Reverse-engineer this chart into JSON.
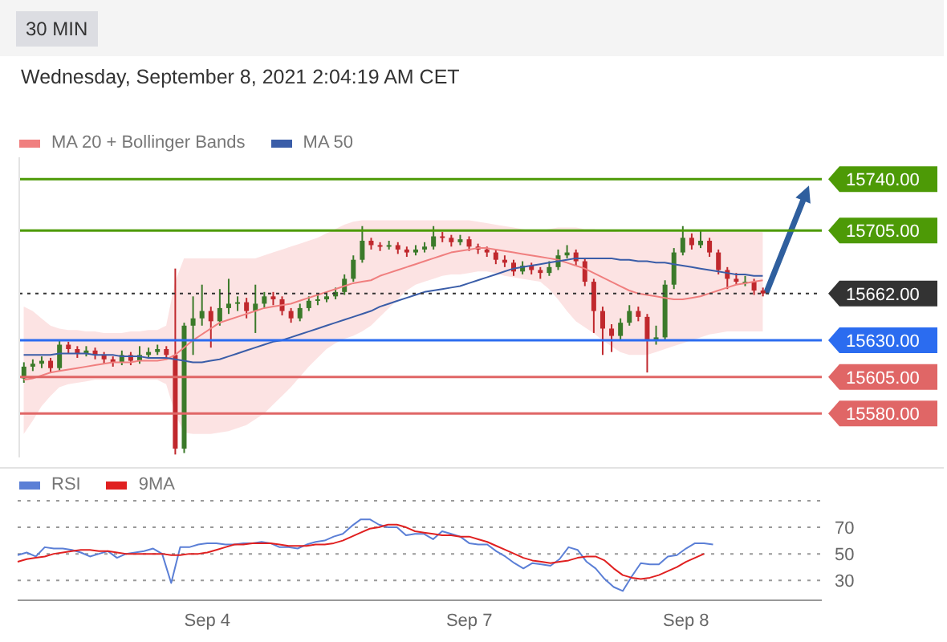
{
  "chart_data": [
    {
      "type": "candlestick",
      "subtitle": "Wednesday, September 8, 2021 2:04:19 AM CET",
      "annotations": [
        "30 MIN"
      ],
      "legend": "top left",
      "tick_labels": false,
      "categories": [
        null,
        null,
        null,
        null,
        null,
        null,
        null,
        null,
        null,
        null,
        null,
        null,
        null,
        null,
        null,
        null,
        null,
        null,
        null,
        null,
        null,
        null,
        null,
        null,
        null,
        null,
        null,
        null,
        null,
        null,
        null,
        null,
        null,
        null,
        null,
        null,
        null,
        null,
        null,
        null,
        null,
        null,
        null,
        null,
        null,
        null,
        null,
        null,
        null,
        null,
        null,
        null,
        null,
        null,
        null,
        null,
        null,
        null,
        null,
        null,
        null,
        null,
        null,
        null,
        null,
        null,
        null,
        null,
        null,
        null,
        null,
        null,
        null,
        null,
        null,
        null,
        null,
        null,
        null,
        null,
        null,
        null,
        null,
        null
      ],
      "ylim": [
        15550,
        15755
      ],
      "ohlc": [
        [
          15604,
          15615,
          15601,
          15612
        ],
        [
          15612,
          15617,
          15609,
          15614
        ],
        [
          15614,
          15619,
          15611,
          15616
        ],
        [
          15616,
          15618,
          15608,
          15611
        ],
        [
          15611,
          15630,
          15609,
          15627
        ],
        [
          15627,
          15629,
          15621,
          15624
        ],
        [
          15624,
          15626,
          15618,
          15621
        ],
        [
          15621,
          15626,
          15619,
          15623
        ],
        [
          15623,
          15625,
          15617,
          15620
        ],
        [
          15620,
          15622,
          15614,
          15617
        ],
        [
          15617,
          15619,
          15612,
          15615
        ],
        [
          15615,
          15623,
          15613,
          15620
        ],
        [
          15620,
          15622,
          15613,
          15616
        ],
        [
          15616,
          15626,
          15614,
          15620
        ],
        [
          15620,
          15625,
          15618,
          15622
        ],
        [
          15622,
          15627,
          15620,
          15624
        ],
        [
          15624,
          15626,
          15617,
          15620
        ],
        [
          15620,
          15679,
          15552,
          15556
        ],
        [
          15556,
          15642,
          15553,
          15640
        ],
        [
          15640,
          15660,
          15620,
          15645
        ],
        [
          15645,
          15668,
          15640,
          15650
        ],
        [
          15650,
          15653,
          15625,
          15643
        ],
        [
          15643,
          15665,
          15640,
          15652
        ],
        [
          15652,
          15672,
          15648,
          15655
        ],
        [
          15655,
          15660,
          15650,
          15656
        ],
        [
          15656,
          15659,
          15645,
          15650
        ],
        [
          15650,
          15668,
          15635,
          15655
        ],
        [
          15655,
          15663,
          15652,
          15660
        ],
        [
          15660,
          15663,
          15654,
          15658
        ],
        [
          15658,
          15660,
          15647,
          15650
        ],
        [
          15650,
          15652,
          15642,
          15645
        ],
        [
          15645,
          15655,
          15643,
          15652
        ],
        [
          15652,
          15660,
          15650,
          15657
        ],
        [
          15657,
          15661,
          15654,
          15658
        ],
        [
          15658,
          15663,
          15656,
          15660
        ],
        [
          15660,
          15666,
          15658,
          15663
        ],
        [
          15663,
          15675,
          15661,
          15672
        ],
        [
          15672,
          15688,
          15670,
          15685
        ],
        [
          15685,
          15708,
          15683,
          15698
        ],
        [
          15698,
          15700,
          15692,
          15695
        ],
        [
          15695,
          15697,
          15691,
          15694
        ],
        [
          15694,
          15698,
          15692,
          15695
        ],
        [
          15695,
          15697,
          15689,
          15692
        ],
        [
          15692,
          15694,
          15687,
          15690
        ],
        [
          15690,
          15695,
          15688,
          15692
        ],
        [
          15692,
          15697,
          15690,
          15694
        ],
        [
          15694,
          15708,
          15692,
          15701
        ],
        [
          15701,
          15704,
          15697,
          15700
        ],
        [
          15700,
          15702,
          15694,
          15697
        ],
        [
          15697,
          15702,
          15695,
          15699
        ],
        [
          15699,
          15701,
          15691,
          15694
        ],
        [
          15694,
          15696,
          15689,
          15692
        ],
        [
          15692,
          15694,
          15687,
          15690
        ],
        [
          15690,
          15692,
          15682,
          15685
        ],
        [
          15685,
          15688,
          15680,
          15683
        ],
        [
          15683,
          15685,
          15674,
          15677
        ],
        [
          15677,
          15684,
          15675,
          15681
        ],
        [
          15681,
          15683,
          15675,
          15678
        ],
        [
          15678,
          15680,
          15672,
          15676
        ],
        [
          15676,
          15684,
          15674,
          15680
        ],
        [
          15680,
          15692,
          15678,
          15688
        ],
        [
          15688,
          15695,
          15686,
          15690
        ],
        [
          15690,
          15692,
          15681,
          15684
        ],
        [
          15684,
          15686,
          15667,
          15670
        ],
        [
          15670,
          15672,
          15635,
          15650
        ],
        [
          15650,
          15653,
          15620,
          15638
        ],
        [
          15638,
          15641,
          15622,
          15633
        ],
        [
          15633,
          15645,
          15630,
          15642
        ],
        [
          15642,
          15654,
          15640,
          15650
        ],
        [
          15650,
          15653,
          15643,
          15646
        ],
        [
          15646,
          15648,
          15608,
          15630
        ],
        [
          15630,
          15640,
          15627,
          15632
        ],
        [
          15632,
          15671,
          15630,
          15668
        ],
        [
          15668,
          15693,
          15665,
          15690
        ],
        [
          15690,
          15708,
          15688,
          15700
        ],
        [
          15700,
          15703,
          15692,
          15695
        ],
        [
          15695,
          15705,
          15693,
          15698
        ],
        [
          15698,
          15700,
          15687,
          15690
        ],
        [
          15690,
          15692,
          15675,
          15678
        ],
        [
          15678,
          15680,
          15665,
          15672
        ],
        [
          15672,
          15676,
          15668,
          15670
        ],
        [
          15670,
          15674,
          15667,
          15670
        ],
        [
          15670,
          15672,
          15661,
          15664
        ],
        [
          15664,
          15666,
          15660,
          15662
        ]
      ],
      "series": [
        {
          "name": "MA 20 + Bollinger Bands",
          "type": "line",
          "color": "#f07f7f",
          "values": [
            15603,
            15604,
            15606,
            15608,
            15609,
            15610,
            15611,
            15612,
            15613,
            15614,
            15615,
            15615,
            15615,
            15616,
            15616,
            15616,
            15617,
            15620,
            15625,
            15630,
            15634,
            15638,
            15642,
            15644,
            15646,
            15648,
            15650,
            15652,
            15653,
            15654,
            15655,
            15657,
            15659,
            15661,
            15663,
            15665,
            15667,
            15669,
            15670,
            15671,
            15674,
            15676,
            15678,
            15680,
            15682,
            15684,
            15686,
            15688,
            15690,
            15691,
            15692,
            15693,
            15693,
            15692,
            15691,
            15690,
            15689,
            15688,
            15687,
            15686,
            15685,
            15683,
            15681,
            15679,
            15676,
            15673,
            15670,
            15667,
            15664,
            15662,
            15661,
            15660,
            15659,
            15658,
            15658,
            15659,
            15660,
            15662,
            15664,
            15666,
            15668,
            15669,
            15670,
            15671
          ],
          "upper": [
            15653,
            15650,
            15645,
            15640,
            15638,
            15637,
            15637,
            15636,
            15636,
            15635,
            15635,
            15635,
            15636,
            15636,
            15637,
            15637,
            15640,
            15670,
            15686,
            15686,
            15686,
            15686,
            15686,
            15686,
            15686,
            15686,
            15686,
            15688,
            15690,
            15692,
            15694,
            15696,
            15698,
            15700,
            15703,
            15706,
            15709,
            15711,
            15712,
            15712,
            15712,
            15712,
            15712,
            15712,
            15712,
            15712,
            15712,
            15712,
            15712,
            15712,
            15712,
            15711,
            15710,
            15709,
            15708,
            15707,
            15706,
            15705,
            15705,
            15706,
            15707,
            15707,
            15707,
            15706,
            15706,
            15705,
            15705,
            15704,
            15704,
            15704,
            15704,
            15704,
            15704,
            15704,
            15704,
            15704,
            15704,
            15704,
            15704,
            15704,
            15704,
            15704,
            15704,
            15704
          ],
          "lower": [
            15566,
            15575,
            15585,
            15592,
            15598,
            15600,
            15601,
            15602,
            15603,
            15603,
            15603,
            15603,
            15603,
            15603,
            15603,
            15603,
            15600,
            15580,
            15567,
            15566,
            15566,
            15566,
            15567,
            15568,
            15570,
            15572,
            15576,
            15580,
            15586,
            15592,
            15598,
            15605,
            15612,
            15618,
            15624,
            15628,
            15631,
            15633,
            15636,
            15640,
            15646,
            15652,
            15658,
            15664,
            15668,
            15670,
            15672,
            15674,
            15675,
            15675,
            15676,
            15677,
            15677,
            15676,
            15674,
            15673,
            15672,
            15671,
            15670,
            15665,
            15658,
            15650,
            15643,
            15639,
            15635,
            15630,
            15626,
            15622,
            15620,
            15620,
            15620,
            15622,
            15624,
            15626,
            15628,
            15630,
            15632,
            15634,
            15635,
            15636,
            15636,
            15636,
            15636,
            15636
          ]
        },
        {
          "name": "MA 50",
          "type": "line",
          "color": "#3a5da8",
          "values": [
            15620,
            15620,
            15620,
            15620,
            15621,
            15621,
            15621,
            15621,
            15620,
            15620,
            15620,
            15619,
            15619,
            15619,
            15618,
            15618,
            15618,
            15617,
            15616,
            15615,
            15615,
            15616,
            15617,
            15619,
            15621,
            15623,
            15625,
            15627,
            15629,
            15630,
            15632,
            15634,
            15636,
            15638,
            15640,
            15642,
            15644,
            15646,
            15648,
            15650,
            15653,
            15655,
            15657,
            15659,
            15661,
            15663,
            15664,
            15665,
            15666,
            15667,
            15669,
            15671,
            15673,
            15675,
            15677,
            15679,
            15680,
            15681,
            15682,
            15683,
            15684,
            15685,
            15686,
            15686,
            15686,
            15686,
            15686,
            15685,
            15685,
            15684,
            15684,
            15683,
            15683,
            15682,
            15681,
            15680,
            15679,
            15678,
            15677,
            15676,
            15675,
            15675,
            15674,
            15674
          ]
        }
      ],
      "ref_lines": [
        {
          "axis": "y",
          "value": 15740,
          "label": "15740.00",
          "color": "#4d9a06",
          "line_style": "solid"
        },
        {
          "axis": "y",
          "value": 15705,
          "label": "15705.00",
          "color": "#4d9a06",
          "line_style": "solid"
        },
        {
          "axis": "y",
          "value": 15662,
          "label": "15662.00",
          "color": "#333333",
          "line_style": "dotted"
        },
        {
          "axis": "y",
          "value": 15630,
          "label": "15630.00",
          "color": "#2b6cf0",
          "line_style": "solid"
        },
        {
          "axis": "y",
          "value": 15605,
          "label": "15605.00",
          "color": "#e06666",
          "line_style": "solid"
        },
        {
          "axis": "y",
          "value": 15580,
          "label": "15580.00",
          "color": "#e06666",
          "line_style": "solid"
        }
      ]
    },
    {
      "type": "line",
      "legend": "top left",
      "grid": "y",
      "categories": [
        null,
        null,
        null,
        null,
        null,
        null,
        null,
        null,
        null,
        null,
        null,
        null,
        null,
        null,
        null,
        null,
        null,
        null,
        null,
        null,
        null,
        "Sep 4",
        null,
        null,
        null,
        null,
        null,
        null,
        null,
        null,
        null,
        null,
        null,
        null,
        null,
        null,
        null,
        null,
        null,
        null,
        null,
        null,
        null,
        null,
        null,
        null,
        null,
        null,
        null,
        null,
        "Sep 7",
        null,
        null,
        null,
        null,
        null,
        null,
        null,
        null,
        null,
        null,
        null,
        null,
        null,
        null,
        null,
        null,
        null,
        null,
        null,
        null,
        null,
        null,
        null,
        "Sep 8",
        null,
        null,
        null,
        null,
        null,
        null,
        null,
        null,
        null
      ],
      "ylim": [
        15,
        90
      ],
      "yticks": [
        70,
        50,
        30
      ],
      "series": [
        {
          "name": "RSI",
          "color": "#5b7fd6",
          "values": [
            49,
            51,
            48,
            55,
            54,
            54,
            53,
            51,
            48,
            50,
            52,
            47,
            50,
            51,
            52,
            54,
            50,
            28,
            55,
            55,
            57,
            58,
            58,
            57,
            57,
            58,
            58,
            59,
            58,
            55,
            55,
            54,
            57,
            59,
            60,
            63,
            65,
            71,
            76,
            76,
            72,
            70,
            70,
            64,
            65,
            65,
            61,
            67,
            65,
            63,
            58,
            57,
            57,
            52,
            48,
            43,
            39,
            43,
            42,
            41,
            46,
            55,
            53,
            44,
            39,
            31,
            25,
            22,
            33,
            43,
            42,
            42,
            48,
            49,
            54,
            58,
            58,
            57,
            null,
            null,
            null,
            null,
            null,
            null
          ]
        },
        {
          "name": "9MA",
          "color": "#e02020",
          "values": [
            44,
            46,
            47,
            48,
            50,
            51,
            52,
            53,
            53,
            52,
            52,
            51,
            50,
            50,
            50,
            50,
            50,
            49,
            49,
            50,
            50,
            51,
            53,
            55,
            57,
            57,
            58,
            58,
            58,
            57,
            56,
            56,
            56,
            57,
            57,
            58,
            60,
            63,
            66,
            69,
            70,
            72,
            72,
            70,
            67,
            66,
            65,
            64,
            64,
            63,
            63,
            61,
            59,
            56,
            53,
            50,
            47,
            45,
            44,
            43,
            44,
            45,
            47,
            48,
            48,
            45,
            39,
            34,
            32,
            31,
            32,
            34,
            37,
            40,
            44,
            47,
            50,
            null,
            null,
            null,
            null,
            null,
            null,
            null
          ]
        }
      ]
    }
  ]
}
